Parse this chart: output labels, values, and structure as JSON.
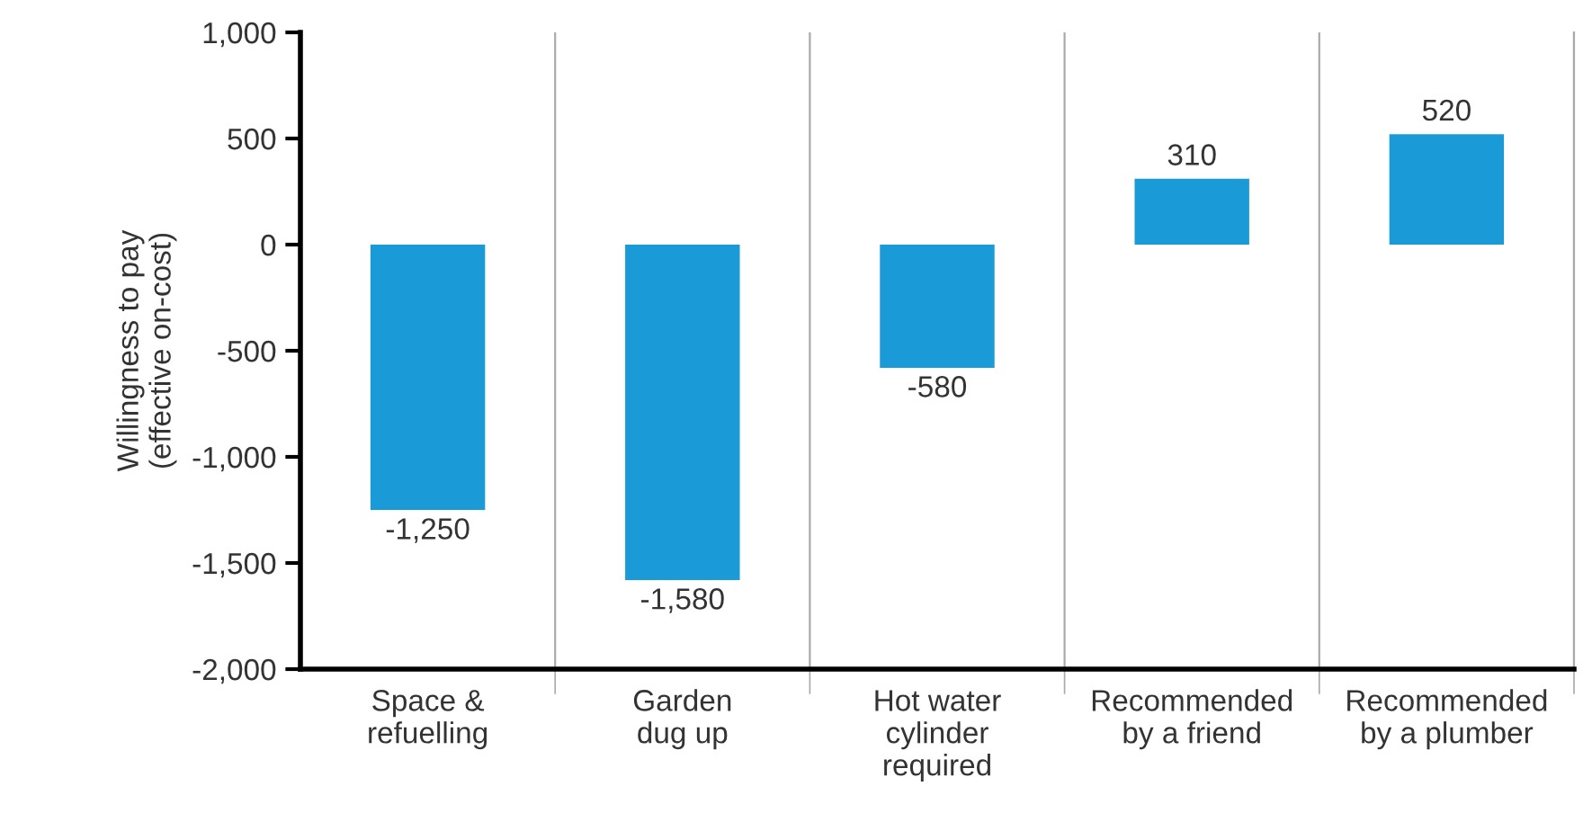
{
  "chart_data": {
    "type": "bar",
    "ylabel": "Willingness to pay\n(effective on-cost)",
    "categories": [
      "Space &\nrefuelling",
      "Garden\ndug up",
      "Hot water\ncylinder\nrequired",
      "Recommended\nby a friend",
      "Recommended\nby a plumber"
    ],
    "values": [
      -1250,
      -1580,
      -580,
      310,
      520
    ],
    "value_labels": [
      "-1,250",
      "-1,580",
      "-580",
      "310",
      "520"
    ],
    "color": "#1a9bd7",
    "ylim": [
      -2000,
      1000
    ],
    "yticks": [
      {
        "value": -2000,
        "label": "-2,000"
      },
      {
        "value": -1500,
        "label": "-1,500"
      },
      {
        "value": -1000,
        "label": "-1,000"
      },
      -500,
      0,
      500,
      {
        "value": 1000,
        "label": "1,000"
      }
    ],
    "grid": "x"
  }
}
